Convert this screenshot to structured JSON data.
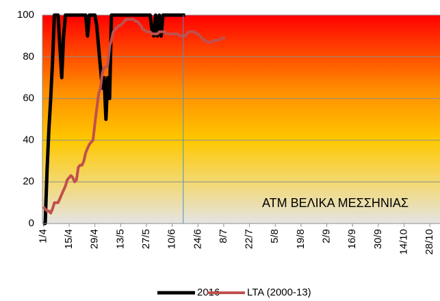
{
  "chart_data": {
    "type": "line",
    "annotation": "ΑΤΜ ΒΕΛΙΚΑ ΜΕΣΣΗΝΙΑΣ",
    "categories": [
      "1/4",
      null,
      null,
      null,
      null,
      null,
      null,
      null,
      null,
      null,
      null,
      null,
      null,
      null,
      "15/4",
      null,
      null,
      null,
      null,
      null,
      null,
      null,
      null,
      null,
      null,
      null,
      null,
      null,
      "29/4",
      null,
      null,
      null,
      null,
      null,
      null,
      null,
      null,
      null,
      null,
      null,
      null,
      null,
      "13/5",
      null,
      null,
      null,
      null,
      null,
      null,
      null,
      null,
      null,
      null,
      null,
      null,
      null,
      "27/5",
      null,
      null,
      null,
      null,
      null,
      null,
      null,
      null,
      null,
      null,
      null,
      null,
      null,
      "10/6",
      null,
      null,
      null,
      null,
      null,
      null,
      null,
      null,
      null,
      null,
      null,
      null,
      null,
      "24/6",
      null,
      null,
      null,
      null,
      null,
      null,
      null,
      null,
      null,
      null,
      null,
      null,
      null,
      "8/7",
      null,
      null,
      null,
      null,
      null,
      null,
      null,
      null,
      null,
      null,
      null,
      null,
      null,
      "22/7",
      null,
      null,
      null,
      null,
      null,
      null,
      null,
      null,
      null,
      null,
      null,
      null,
      null,
      "5/8",
      null,
      null,
      null,
      null,
      null,
      null,
      null,
      null,
      null,
      null,
      null,
      null,
      null,
      "19/8",
      null,
      null,
      null,
      null,
      null,
      null,
      null,
      null,
      null,
      null,
      null,
      null,
      null,
      "2/9",
      null,
      null,
      null,
      null,
      null,
      null,
      null,
      null,
      null,
      null,
      null,
      null,
      null,
      "16/9",
      null,
      null,
      null,
      null,
      null,
      null,
      null,
      null,
      null,
      null,
      null,
      null,
      null,
      "30/9",
      null,
      null,
      null,
      null,
      null,
      null,
      null,
      null,
      null,
      null,
      null,
      null,
      null,
      "14/10",
      null,
      null,
      null,
      null,
      null,
      null,
      null,
      null,
      null,
      null,
      null,
      null,
      null,
      "28/10",
      null,
      null,
      null,
      null,
      null
    ],
    "series": [
      {
        "name": "2016",
        "color": "#000000",
        "width": 5,
        "values": [
          0,
          0,
          25,
          45,
          60,
          78,
          100,
          100,
          100,
          85,
          70,
          90,
          100,
          100,
          100,
          100,
          100,
          100,
          100,
          100,
          100,
          100,
          100,
          100,
          90,
          100,
          100,
          100,
          100,
          95,
          85,
          75,
          65,
          70,
          50,
          70,
          60,
          100,
          100,
          100,
          100,
          100,
          100,
          100,
          100,
          100,
          100,
          100,
          100,
          100,
          100,
          100,
          100,
          100,
          100,
          100,
          100,
          100,
          100,
          93,
          90,
          100,
          90,
          100,
          90,
          100,
          100,
          100,
          100,
          100,
          100,
          100,
          100,
          100,
          100,
          100,
          100,
          100,
          null,
          null,
          null,
          null,
          null,
          null,
          null,
          null,
          null,
          null,
          null,
          null,
          null,
          null,
          null,
          null,
          null,
          null,
          null,
          null,
          null,
          null,
          null,
          null,
          null,
          null,
          null,
          null,
          null,
          null,
          null,
          null,
          null,
          null,
          null,
          null,
          null,
          null,
          null,
          null,
          null,
          null,
          null,
          null,
          null,
          null,
          null,
          null,
          null,
          null,
          null,
          null,
          null,
          null,
          null,
          null,
          null,
          null,
          null,
          null,
          null,
          null,
          null,
          null,
          null,
          null,
          null,
          null,
          null,
          null,
          null,
          null,
          null,
          null,
          null,
          null,
          null,
          null,
          null,
          null,
          null,
          null,
          null,
          null,
          null,
          null,
          null,
          null,
          null,
          null,
          null,
          null,
          null,
          null,
          null,
          null,
          null,
          null,
          null,
          null,
          null,
          null,
          null,
          null,
          null,
          null,
          null,
          null,
          null,
          null,
          null,
          null,
          null,
          null,
          null,
          null,
          null,
          null,
          null,
          null,
          null,
          null,
          null,
          null,
          null,
          null,
          null,
          null,
          null,
          null,
          null,
          null,
          null,
          null,
          null,
          null,
          null,
          null
        ]
      },
      {
        "name": "LTA (2000-13)",
        "color": "#c0504d",
        "width": 4,
        "values": [
          8,
          7,
          6,
          6,
          5,
          7,
          10,
          10,
          10,
          12,
          14,
          16,
          18,
          21,
          22,
          23,
          22,
          20,
          21,
          27,
          28,
          28,
          30,
          34,
          36,
          38,
          39,
          40,
          48,
          55,
          62,
          65,
          72,
          75,
          75,
          76,
          85,
          88,
          92,
          93,
          94,
          95,
          95,
          96,
          97,
          98,
          98,
          98,
          98,
          98,
          97,
          97,
          96,
          95,
          93,
          93,
          92,
          92,
          92,
          91,
          91,
          91,
          91,
          92,
          92,
          92,
          92,
          91,
          91,
          91,
          91,
          91,
          91,
          91,
          90,
          90,
          90,
          90,
          91,
          92,
          92,
          92,
          92,
          91,
          91,
          90,
          89,
          88,
          88,
          87,
          87,
          87,
          87,
          88,
          88,
          88,
          88,
          89,
          89,
          89,
          null,
          null,
          null,
          null,
          null,
          null,
          null,
          null,
          null,
          null,
          null,
          null,
          null,
          null,
          null,
          null,
          null,
          null,
          null,
          null,
          null,
          null,
          null,
          null,
          null,
          null,
          null,
          null,
          null,
          null,
          null,
          null,
          null,
          null,
          null,
          null,
          null,
          null,
          null,
          null,
          null,
          null,
          null,
          null,
          null,
          null,
          null,
          null,
          null,
          null,
          null,
          null,
          null,
          null,
          null,
          null,
          null,
          null,
          null,
          null,
          null,
          null,
          null,
          null,
          null,
          null,
          null,
          null,
          null,
          null,
          null,
          null,
          null,
          null,
          null,
          null,
          null,
          null,
          null,
          null,
          null,
          null,
          null,
          null,
          null,
          null,
          null,
          null,
          null,
          null,
          null,
          null,
          null,
          null,
          null,
          null,
          null,
          null,
          null,
          null,
          null,
          null,
          null,
          null,
          null,
          null,
          null,
          null,
          null,
          null,
          null,
          null,
          null,
          null,
          null,
          null
        ]
      }
    ],
    "ylim": [
      0,
      100
    ],
    "yticks": [
      0,
      20,
      40,
      60,
      80,
      100
    ],
    "grid": true,
    "legend": "bottom"
  }
}
